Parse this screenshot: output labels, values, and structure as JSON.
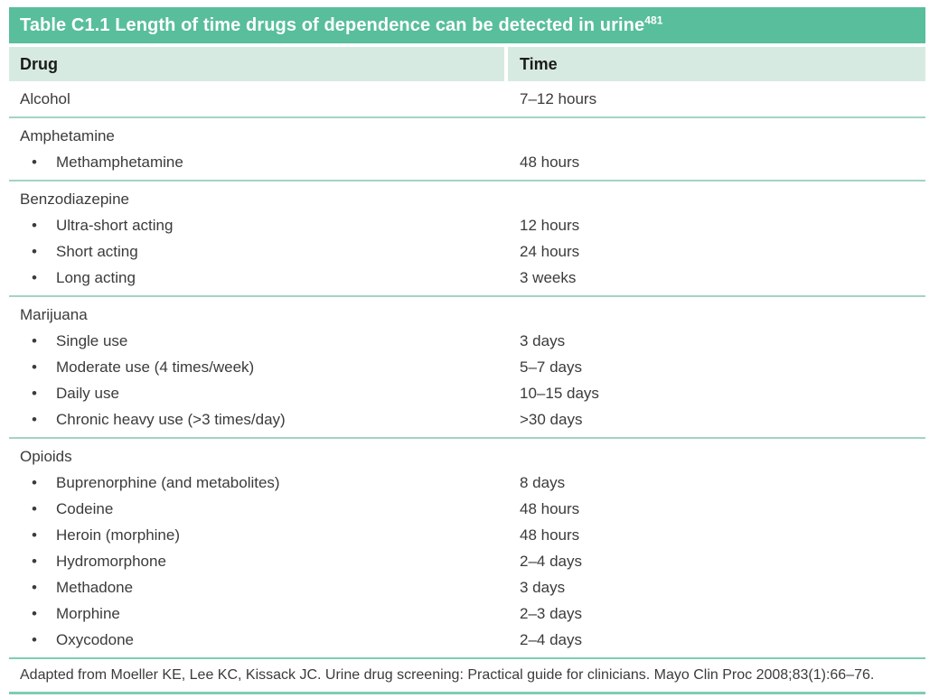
{
  "title": {
    "text": "Table C1.1 Length of time drugs of dependence can be detected in urine",
    "superscript": "481"
  },
  "columns": {
    "drug": "Drug",
    "time": "Time"
  },
  "sections": [
    {
      "rows": [
        {
          "label": "Alcohol",
          "time": "7–12 hours",
          "bullet": false
        }
      ]
    },
    {
      "rows": [
        {
          "label": "Amphetamine",
          "time": "",
          "bullet": false
        },
        {
          "label": "Methamphetamine",
          "time": "48 hours",
          "bullet": true
        }
      ]
    },
    {
      "rows": [
        {
          "label": "Benzodiazepine",
          "time": "",
          "bullet": false
        },
        {
          "label": "Ultra-short acting",
          "time": "12 hours",
          "bullet": true
        },
        {
          "label": "Short acting",
          "time": "24 hours",
          "bullet": true
        },
        {
          "label": "Long acting",
          "time": "3 weeks",
          "bullet": true
        }
      ]
    },
    {
      "rows": [
        {
          "label": "Marijuana",
          "time": "",
          "bullet": false
        },
        {
          "label": "Single use",
          "time": "3 days",
          "bullet": true
        },
        {
          "label": "Moderate use (4 times/week)",
          "time": "5–7 days",
          "bullet": true
        },
        {
          "label": "Daily use",
          "time": "10–15 days",
          "bullet": true
        },
        {
          "label": "Chronic heavy use (>3 times/day)",
          "time": ">30 days",
          "bullet": true
        }
      ]
    },
    {
      "rows": [
        {
          "label": "Opioids",
          "time": "",
          "bullet": false
        },
        {
          "label": "Buprenorphine (and metabolites)",
          "time": "8 days",
          "bullet": true
        },
        {
          "label": "Codeine",
          "time": "48 hours",
          "bullet": true
        },
        {
          "label": "Heroin (morphine)",
          "time": "48 hours",
          "bullet": true
        },
        {
          "label": "Hydromorphone",
          "time": "2–4 days",
          "bullet": true
        },
        {
          "label": "Methadone",
          "time": "3 days",
          "bullet": true
        },
        {
          "label": "Morphine",
          "time": "2–3 days",
          "bullet": true
        },
        {
          "label": "Oxycodone",
          "time": "2–4 days",
          "bullet": true
        }
      ]
    }
  ],
  "footer": "Adapted from Moeller KE, Lee KC, Kissack JC. Urine drug screening: Practical guide for clinicians. Mayo Clin Proc 2008;83(1):66–76.",
  "colors": {
    "title_bar_bg": "#58BE9B",
    "title_text": "#FFFFFF",
    "header_row_bg": "#D7EAE1",
    "row_divider": "#A3D4C3",
    "footer_divider": "#7ECDB3",
    "body_text": "#3B3B3B"
  }
}
